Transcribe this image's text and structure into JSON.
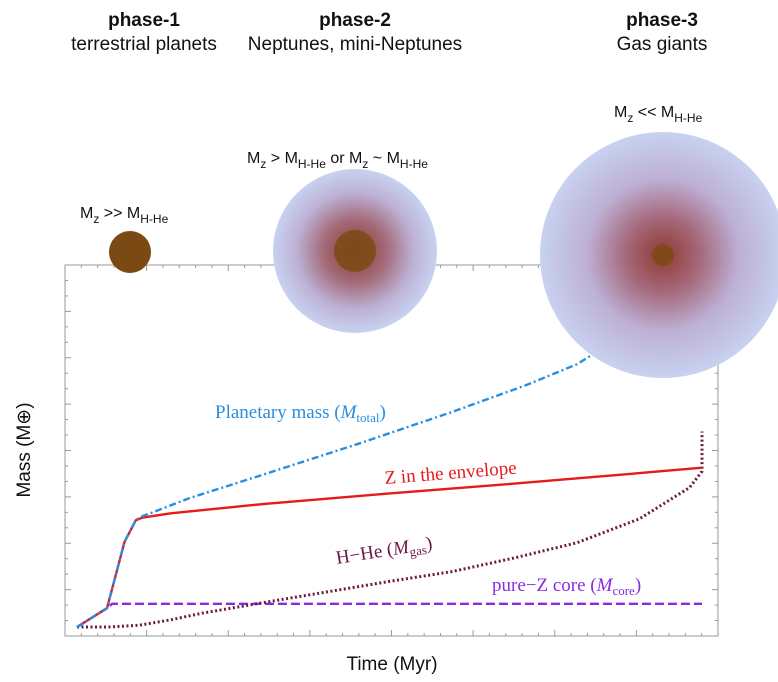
{
  "phases": [
    {
      "title": "phase-1",
      "subtitle": "terrestrial planets"
    },
    {
      "title": "phase-2",
      "subtitle": "Neptunes, mini-Neptunes"
    },
    {
      "title": "phase-3",
      "subtitle": "Gas giants"
    }
  ],
  "planets": [
    {
      "relation": [
        "M",
        "z",
        " >> M",
        "H-He",
        ""
      ]
    },
    {
      "relation": [
        "M",
        "z",
        " > M",
        "H-He",
        " or  M",
        "z",
        " ~ M",
        "H-He"
      ]
    },
    {
      "relation": [
        "M",
        "z",
        " << M",
        "H-He",
        ""
      ]
    }
  ],
  "colors": {
    "core": "#7b4a14",
    "envelope": "#c3cdee",
    "envelope_inner": "#8a3a32",
    "total": "#2a8ee0",
    "z_envelope": "#e8191b",
    "hhe": "#6b1846",
    "pure_core": "#8a2be2",
    "axis": "#999999"
  },
  "chart_data": {
    "type": "line",
    "xlabel": "Time (Myr)",
    "ylabel": "Mass (M⊕)",
    "xlim": [
      0,
      100
    ],
    "ylim": [
      0,
      100
    ],
    "ticks_labeled": false,
    "series": [
      {
        "name": "Planetary mass (Mtotal)",
        "key": "total",
        "style": "dashdot",
        "x": [
          0,
          4.8,
          7.6,
          9.4,
          10.4,
          12,
          18,
          30,
          45,
          60,
          72,
          80,
          86,
          90,
          92
        ],
        "y": [
          0,
          5.2,
          23.5,
          29.5,
          30.6,
          31.6,
          35.6,
          42.2,
          50.6,
          59.4,
          66.9,
          72.6,
          79.0,
          86.0,
          92.0
        ]
      },
      {
        "name": "Z in the envelope",
        "key": "z",
        "style": "solid",
        "x": [
          0,
          4.8,
          7.6,
          9.4,
          10.4,
          15,
          30,
          50,
          70,
          90,
          100
        ],
        "y": [
          0,
          5.2,
          23.5,
          29.5,
          30.2,
          31.4,
          34.0,
          36.9,
          39.6,
          42.5,
          44.0
        ]
      },
      {
        "name": "H−He (Mgas)",
        "key": "hhe",
        "style": "dotted",
        "x": [
          0,
          5,
          10,
          15,
          20,
          30,
          40,
          50,
          60,
          70,
          80,
          90,
          98,
          100,
          100
        ],
        "y": [
          0,
          0,
          0.5,
          2.0,
          3.8,
          6.8,
          9.7,
          12.6,
          15.3,
          19.1,
          23.3,
          29.9,
          38.5,
          43.0,
          54.0
        ]
      },
      {
        "name": "pure−Z core (Mcore)",
        "key": "core",
        "style": "dashed",
        "x": [
          0,
          4.8,
          5.6,
          100
        ],
        "y": [
          0,
          5.2,
          6.4,
          6.4
        ]
      }
    ],
    "labels": {
      "total": [
        "Planetary mass (",
        "M",
        "total",
        ")"
      ],
      "z": [
        "Z in the envelope"
      ],
      "hhe": [
        "H−He (",
        "M",
        "gas",
        ")"
      ],
      "core": [
        "pure−Z core (",
        "M",
        "core",
        ")"
      ]
    }
  }
}
